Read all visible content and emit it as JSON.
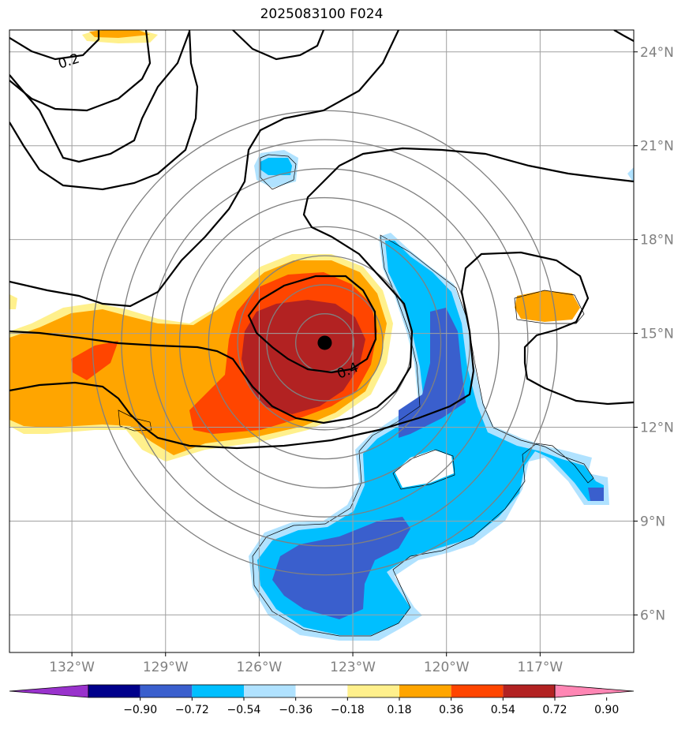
{
  "title": "2025083100 F024",
  "chart_data": {
    "type": "contour-map",
    "title": "2025083100 F024",
    "lat_ticks": [
      "24°N",
      "21°N",
      "18°N",
      "15°N",
      "12°N",
      "9°N",
      "6°N"
    ],
    "lon_ticks": [
      "132°W",
      "129°W",
      "126°W",
      "123°W",
      "120°W",
      "117°W"
    ],
    "lat_values": [
      24,
      21,
      18,
      15,
      12,
      9,
      6
    ],
    "lon_values": [
      -132,
      -129,
      -126,
      -123,
      -120,
      -117
    ],
    "lat_range": [
      4.8,
      24.7
    ],
    "lon_range": [
      -134.0,
      -114.0
    ],
    "grid": true,
    "storm_center": {
      "lon": -123.9,
      "lat": 14.7
    },
    "range_rings_deg": [
      1,
      2,
      3,
      4,
      5,
      6,
      7,
      8
    ],
    "line_contour_labels": [
      "0.2",
      "0.4"
    ],
    "colorbar": {
      "ticks": [
        "−0.90",
        "−0.72",
        "−0.54",
        "−0.36",
        "−0.18",
        "0.18",
        "0.36",
        "0.54",
        "0.72",
        "0.90"
      ],
      "colors": [
        "#9932cc",
        "#00008b",
        "#3a5fcd",
        "#00bfff",
        "#b0e2ff",
        "#ffffff",
        "#fff08c",
        "#ffa500",
        "#ff4500",
        "#b22222",
        "#ff86b4"
      ],
      "extend": "both"
    },
    "fill_colors": {
      "light_yellow": "#fff08c",
      "orange": "#ffa500",
      "red_orange": "#ff4500",
      "dark_red": "#b22222",
      "light_blue": "#b0e2ff",
      "deep_sky_blue": "#00bfff",
      "royal_blue": "#3a5fcd"
    }
  }
}
